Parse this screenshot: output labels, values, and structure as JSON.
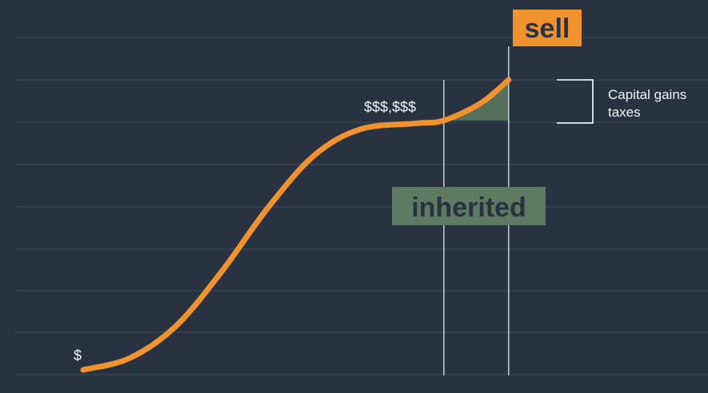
{
  "chart_data": {
    "type": "line",
    "title": "",
    "xlabel": "",
    "ylabel": "",
    "grid": true,
    "series": [
      {
        "values": [
          {
            "x": 0.0,
            "y": 0.0
          },
          {
            "x": 0.1,
            "y": 0.04
          },
          {
            "x": 0.2,
            "y": 0.15
          },
          {
            "x": 0.3,
            "y": 0.34
          },
          {
            "x": 0.4,
            "y": 0.56
          },
          {
            "x": 0.5,
            "y": 0.74
          },
          {
            "x": 0.6,
            "y": 0.83
          },
          {
            "x": 0.72,
            "y": 0.85
          },
          {
            "x": 0.78,
            "y": 0.86
          },
          {
            "x": 0.86,
            "y": 0.92
          },
          {
            "x": 0.92,
            "y": 1.0
          }
        ]
      }
    ],
    "annotations": {
      "start_label": "$",
      "peak_value_label": "$$$,$$$",
      "inherited_label": "inherited",
      "sell_label": "sell",
      "bracket_note_line1": "Capital gains",
      "bracket_note_line2": "taxes",
      "inherited_x": 0.78,
      "sell_x": 0.92
    },
    "colors": {
      "background": "#283241",
      "line": "#f0922e",
      "gain_area": "#5d7a63",
      "sell_badge": "#f0922e",
      "inherited_badge": "#5d7a63",
      "marker_lines": "#c9ced6"
    }
  }
}
